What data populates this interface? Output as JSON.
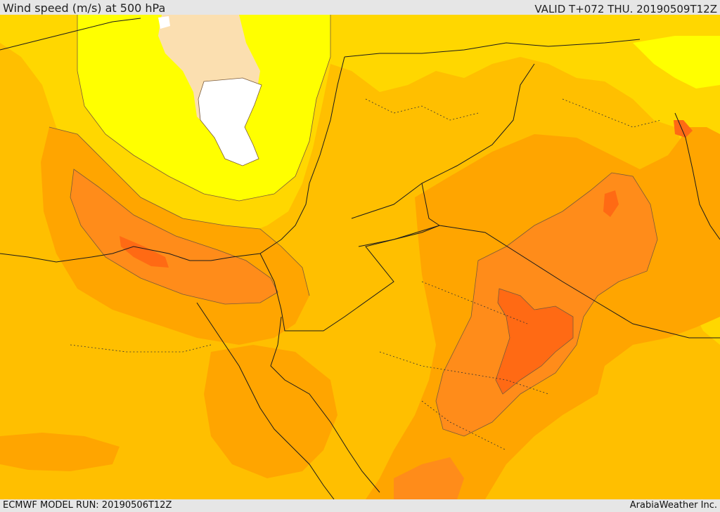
{
  "header": {
    "title": "Wind speed (m/s) at 500 hPa",
    "valid": "VALID T+072 THU. 20190509T12Z"
  },
  "footer": {
    "model_run": "ECMWF MODEL RUN: 20190506T12Z",
    "brand": "ArabiaWeather Inc."
  },
  "colors": {
    "band_very_low": "#ffffff",
    "band_low": "#fbdfb0",
    "band_light": "#ffff00",
    "band_moderate": "#ffd700",
    "band_medium": "#ffbf00",
    "band_high": "#ffa500",
    "band_higher": "#ff8c1a",
    "band_max": "#ff6a14",
    "coastline": "#1a1a1a",
    "contour": "#7a5a3a"
  }
}
